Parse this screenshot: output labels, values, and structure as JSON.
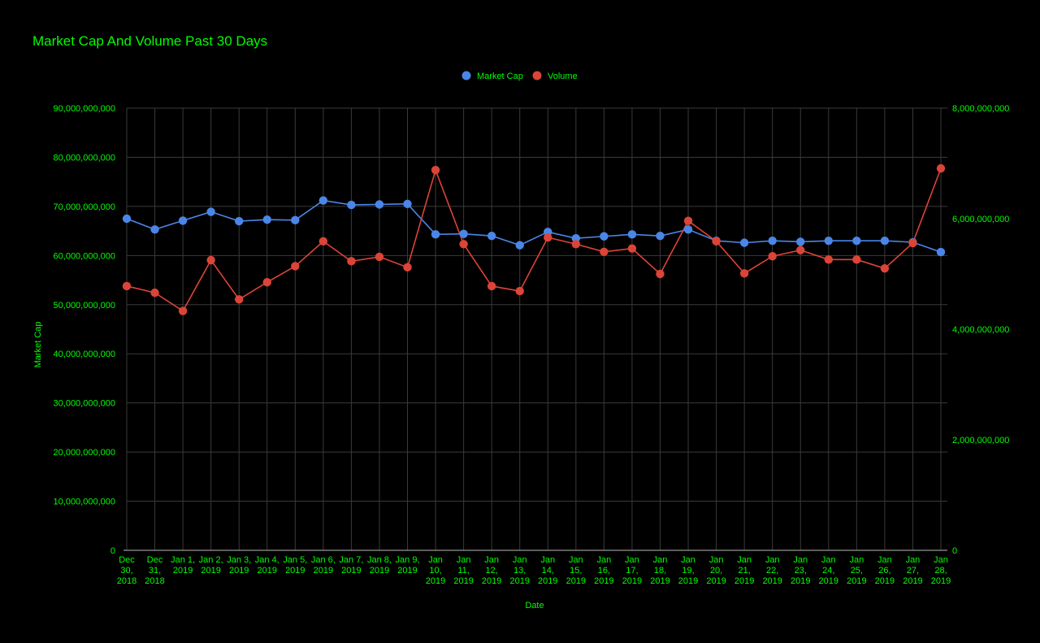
{
  "colors": {
    "background": "#000000",
    "text": "#00ff00",
    "grid": "#3a3a3a",
    "market_cap": "#4a86e8",
    "volume": "#db4437"
  },
  "chart_data": {
    "type": "line",
    "title": "Market Cap And Volume Past 30 Days",
    "xlabel": "Date",
    "ylabel_left": "Market Cap",
    "ylabel_right": "",
    "legend_position": "top",
    "grid": true,
    "categories": [
      [
        "Dec",
        "30,",
        "2018"
      ],
      [
        "Dec",
        "31,",
        "2018"
      ],
      [
        "Jan 1,",
        "2019"
      ],
      [
        "Jan 2,",
        "2019"
      ],
      [
        "Jan 3,",
        "2019"
      ],
      [
        "Jan 4,",
        "2019"
      ],
      [
        "Jan 5,",
        "2019"
      ],
      [
        "Jan 6,",
        "2019"
      ],
      [
        "Jan 7,",
        "2019"
      ],
      [
        "Jan 8,",
        "2019"
      ],
      [
        "Jan 9,",
        "2019"
      ],
      [
        "Jan",
        "10,",
        "2019"
      ],
      [
        "Jan",
        "11,",
        "2019"
      ],
      [
        "Jan",
        "12,",
        "2019"
      ],
      [
        "Jan",
        "13,",
        "2019"
      ],
      [
        "Jan",
        "14,",
        "2019"
      ],
      [
        "Jan",
        "15,",
        "2019"
      ],
      [
        "Jan",
        "16,",
        "2019"
      ],
      [
        "Jan",
        "17,",
        "2019"
      ],
      [
        "Jan",
        "18,",
        "2019"
      ],
      [
        "Jan",
        "19,",
        "2019"
      ],
      [
        "Jan",
        "20,",
        "2019"
      ],
      [
        "Jan",
        "21,",
        "2019"
      ],
      [
        "Jan",
        "22,",
        "2019"
      ],
      [
        "Jan",
        "23,",
        "2019"
      ],
      [
        "Jan",
        "24,",
        "2019"
      ],
      [
        "Jan",
        "25,",
        "2019"
      ],
      [
        "Jan",
        "26,",
        "2019"
      ],
      [
        "Jan",
        "27,",
        "2019"
      ],
      [
        "Jan",
        "28,",
        "2019"
      ]
    ],
    "y_left": {
      "min": 0,
      "max": 90000000000,
      "ticks": [
        0,
        10000000000,
        20000000000,
        30000000000,
        40000000000,
        50000000000,
        60000000000,
        70000000000,
        80000000000,
        90000000000
      ],
      "tick_labels": [
        "0",
        "10,000,000,000",
        "20,000,000,000",
        "30,000,000,000",
        "40,000,000,000",
        "50,000,000,000",
        "60,000,000,000",
        "70,000,000,000",
        "80,000,000,000",
        "90,000,000,000"
      ]
    },
    "y_right": {
      "min": 0,
      "max": 8000000000,
      "ticks": [
        0,
        2000000000,
        4000000000,
        6000000000,
        8000000000
      ],
      "tick_labels": [
        "0",
        "2,000,000,000",
        "4,000,000,000",
        "6,000,000,000",
        "8,000,000,000"
      ]
    },
    "series": [
      {
        "name": "Market Cap",
        "axis": "left",
        "values": [
          67500000000,
          65300000000,
          67100000000,
          68900000000,
          67000000000,
          67300000000,
          67200000000,
          71200000000,
          70300000000,
          70400000000,
          70500000000,
          64300000000,
          64400000000,
          64000000000,
          62100000000,
          64800000000,
          63500000000,
          63900000000,
          64300000000,
          64000000000,
          65300000000,
          63000000000,
          62600000000,
          63000000000,
          62800000000,
          63000000000,
          63000000000,
          63000000000,
          62700000000,
          60700000000
        ]
      },
      {
        "name": "Volume",
        "axis": "right",
        "values": [
          4780000000,
          4660000000,
          4330000000,
          5250000000,
          4540000000,
          4850000000,
          5140000000,
          5590000000,
          5230000000,
          5310000000,
          5120000000,
          6880000000,
          5540000000,
          4780000000,
          4690000000,
          5660000000,
          5540000000,
          5400000000,
          5460000000,
          5000000000,
          5960000000,
          5590000000,
          5010000000,
          5320000000,
          5430000000,
          5260000000,
          5260000000,
          5100000000,
          5560000000,
          6910000000
        ]
      }
    ]
  }
}
